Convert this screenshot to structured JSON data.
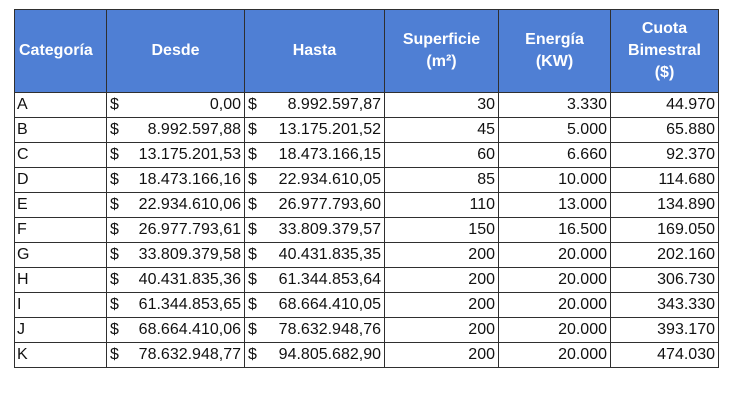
{
  "table": {
    "headers": {
      "categoria": "Categoría",
      "desde": "Desde",
      "hasta": "Hasta",
      "superficie_line1": "Superficie",
      "superficie_line2": "(m²)",
      "energia_line1": "Energía",
      "energia_line2": "(KW)",
      "cuota_line1": "Cuota",
      "cuota_line2": "Bimestral",
      "cuota_line3": "($)"
    },
    "currency_symbol": "$",
    "rows": [
      {
        "categoria": "A",
        "desde": "0,00",
        "hasta": "8.992.597,87",
        "superficie": "30",
        "energia": "3.330",
        "cuota": "44.970"
      },
      {
        "categoria": "B",
        "desde": "8.992.597,88",
        "hasta": "13.175.201,52",
        "superficie": "45",
        "energia": "5.000",
        "cuota": "65.880"
      },
      {
        "categoria": "C",
        "desde": "13.175.201,53",
        "hasta": "18.473.166,15",
        "superficie": "60",
        "energia": "6.660",
        "cuota": "92.370"
      },
      {
        "categoria": "D",
        "desde": "18.473.166,16",
        "hasta": "22.934.610,05",
        "superficie": "85",
        "energia": "10.000",
        "cuota": "114.680"
      },
      {
        "categoria": "E",
        "desde": "22.934.610,06",
        "hasta": "26.977.793,60",
        "superficie": "110",
        "energia": "13.000",
        "cuota": "134.890"
      },
      {
        "categoria": "F",
        "desde": "26.977.793,61",
        "hasta": "33.809.379,57",
        "superficie": "150",
        "energia": "16.500",
        "cuota": "169.050"
      },
      {
        "categoria": "G",
        "desde": "33.809.379,58",
        "hasta": "40.431.835,35",
        "superficie": "200",
        "energia": "20.000",
        "cuota": "202.160"
      },
      {
        "categoria": "H",
        "desde": "40.431.835,36",
        "hasta": "61.344.853,64",
        "superficie": "200",
        "energia": "20.000",
        "cuota": "306.730"
      },
      {
        "categoria": "I",
        "desde": "61.344.853,65",
        "hasta": "68.664.410,05",
        "superficie": "200",
        "energia": "20.000",
        "cuota": "343.330"
      },
      {
        "categoria": "J",
        "desde": "68.664.410,06",
        "hasta": "78.632.948,76",
        "superficie": "200",
        "energia": "20.000",
        "cuota": "393.170"
      },
      {
        "categoria": "K",
        "desde": "78.632.948,77",
        "hasta": "94.805.682,90",
        "superficie": "200",
        "energia": "20.000",
        "cuota": "474.030"
      }
    ]
  },
  "colors": {
    "header_background": "#4f7fd4",
    "header_text": "#ffffff",
    "grid_lines": "#2f2f2f"
  }
}
